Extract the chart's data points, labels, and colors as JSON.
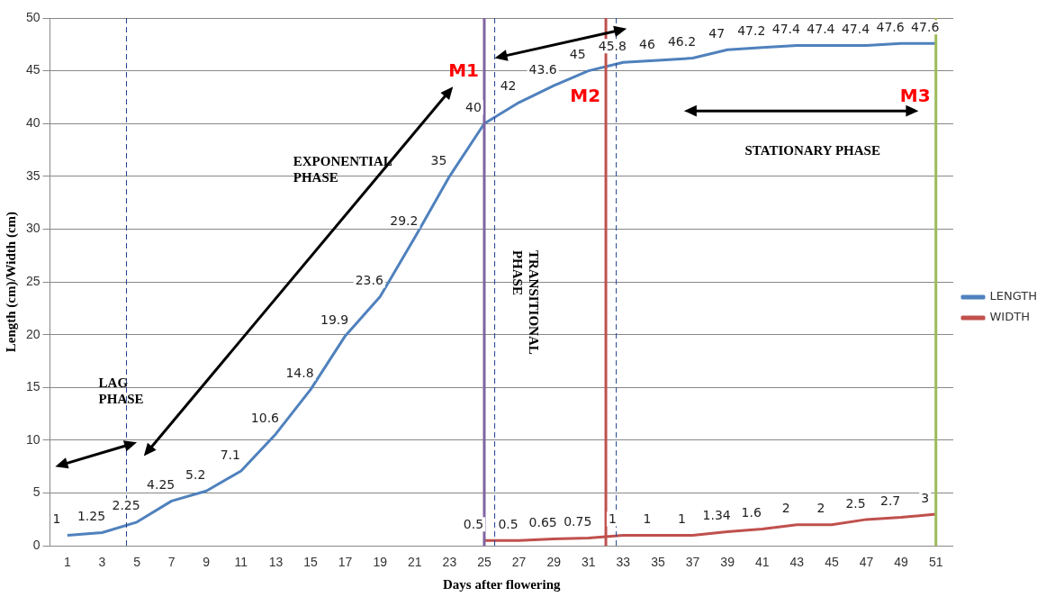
{
  "chart_data": {
    "type": "line",
    "xlabel": "Days after flowering",
    "ylabel": "Length (cm)/Width (cm)",
    "xlim": [
      0,
      52
    ],
    "xticks": [
      1,
      3,
      5,
      7,
      9,
      11,
      13,
      15,
      17,
      19,
      21,
      23,
      25,
      27,
      29,
      31,
      33,
      35,
      37,
      39,
      41,
      43,
      45,
      47,
      49,
      51
    ],
    "ylim": [
      0,
      50
    ],
    "yticks": [
      0,
      5,
      10,
      15,
      20,
      25,
      30,
      35,
      40,
      45,
      50
    ],
    "grid": "y",
    "legend": "right",
    "data_labels": true,
    "marker": "none",
    "series": [
      {
        "name": "LENGTH",
        "color": "#4f81bd",
        "x": [
          1,
          3,
          5,
          7,
          9,
          11,
          13,
          15,
          17,
          19,
          21,
          23,
          25,
          27,
          29,
          31,
          33,
          35,
          37,
          39,
          41,
          43,
          45,
          47,
          49,
          51
        ],
        "values": [
          1,
          1.25,
          2.25,
          4.25,
          5.2,
          7.1,
          10.6,
          14.8,
          19.9,
          23.6,
          29.2,
          35,
          40,
          42,
          43.6,
          45,
          45.8,
          46,
          46.2,
          47,
          47.2,
          47.4,
          47.4,
          47.4,
          47.6,
          47.6
        ]
      },
      {
        "name": "WIDTH",
        "color": "#c0504d",
        "x": [
          25,
          27,
          29,
          31,
          33,
          35,
          37,
          39,
          41,
          43,
          45,
          47,
          49,
          51
        ],
        "values": [
          0.5,
          0.5,
          0.65,
          0.75,
          1,
          1,
          1,
          1.34,
          1.6,
          2,
          2,
          2.5,
          2.7,
          3
        ]
      }
    ],
    "ref_lines": [
      {
        "axis": "x",
        "value": 4.4,
        "color": "#1f3f8f",
        "line_style": "dashed"
      },
      {
        "axis": "x",
        "value": 25.6,
        "color": "#1f3f8f",
        "line_style": "dashed"
      },
      {
        "axis": "x",
        "value": 32.6,
        "color": "#1f3f8f",
        "line_style": "dashed"
      },
      {
        "axis": "x",
        "value": 25,
        "label": "M1",
        "color": "#8064a2",
        "line_style": "solid"
      },
      {
        "axis": "x",
        "value": 32,
        "label": "M2",
        "color": "#c0504d",
        "line_style": "solid"
      },
      {
        "axis": "x",
        "value": 51,
        "label": "M3",
        "color": "#9bbb59",
        "line_style": "solid"
      }
    ],
    "annotations": [
      "LAG PHASE",
      "EXPONENTIAL PHASE",
      "TRANSITIONAL PHASE",
      "STATIONARY PHASE"
    ]
  }
}
